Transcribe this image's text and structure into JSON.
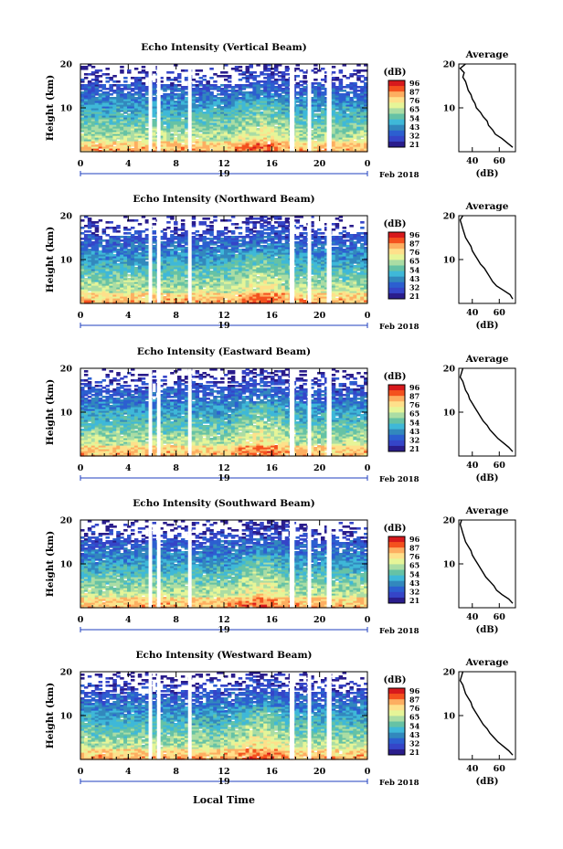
{
  "figure": {
    "xlabel": "Local Time",
    "date_label": "Feb 2018",
    "day_label": "19",
    "colorbar_unit": "(dB)",
    "colorbar_ticks": [
      "96",
      "87",
      "76",
      "65",
      "54",
      "43",
      "32",
      "21"
    ],
    "colorbar_colors": [
      "#d7191c",
      "#f4511e",
      "#fdae61",
      "#fee08b",
      "#e6f598",
      "#abdda4",
      "#66c2a5",
      "#3fb8d8",
      "#3288bd",
      "#2c5fd0",
      "#3545c8",
      "#2a1d8c"
    ],
    "background_color": "#ffffff"
  },
  "chart_data": [
    {
      "type": "heatmap",
      "title": "Echo Intensity (Vertical Beam)",
      "xlabel": "",
      "ylabel": "Height (km)",
      "xlim": [
        0,
        24
      ],
      "ylim": [
        0,
        20
      ],
      "xticks": [
        "0",
        "4",
        "8",
        "12",
        "16",
        "20",
        "0"
      ],
      "yticks": [
        "20",
        "10"
      ],
      "colorbar_label": "(dB)",
      "data_gaps_hours": [
        [
          5.7,
          6.0
        ],
        [
          6.4,
          6.7
        ],
        [
          9.0,
          9.3
        ],
        [
          17.5,
          17.9
        ],
        [
          19.0,
          19.3
        ],
        [
          20.6,
          21.0
        ]
      ],
      "profile": {
        "title": "Average",
        "xlabel": "(dB)",
        "xticks": [
          "40",
          "60"
        ],
        "yticks": [
          "20",
          "10"
        ],
        "xlim": [
          30,
          72
        ],
        "ylim": [
          0,
          20
        ],
        "height_km": [
          1,
          2,
          3,
          4,
          5,
          6,
          7,
          8,
          9,
          10,
          11,
          12,
          13,
          14,
          15,
          16,
          17,
          18,
          19,
          20
        ],
        "db": [
          70,
          66,
          62,
          57,
          55,
          52,
          51,
          48,
          46,
          43,
          42,
          40,
          39,
          37,
          36,
          35,
          33,
          34,
          31,
          35
        ]
      }
    },
    {
      "type": "heatmap",
      "title": "Echo Intensity (Northward Beam)",
      "xlabel": "",
      "ylabel": "Height (km)",
      "xlim": [
        0,
        24
      ],
      "ylim": [
        0,
        20
      ],
      "xticks": [
        "0",
        "4",
        "8",
        "12",
        "16",
        "20",
        "0"
      ],
      "yticks": [
        "20",
        "10"
      ],
      "colorbar_label": "(dB)",
      "data_gaps_hours": [
        [
          5.7,
          6.0
        ],
        [
          6.4,
          6.7
        ],
        [
          9.0,
          9.3
        ],
        [
          17.5,
          17.9
        ],
        [
          19.0,
          19.3
        ],
        [
          20.6,
          21.0
        ]
      ],
      "profile": {
        "title": "Average",
        "xlabel": "(dB)",
        "xticks": [
          "40",
          "60"
        ],
        "yticks": [
          "20",
          "10"
        ],
        "xlim": [
          30,
          72
        ],
        "ylim": [
          0,
          20
        ],
        "height_km": [
          1,
          2,
          3,
          4,
          5,
          6,
          7,
          8,
          9,
          10,
          11,
          12,
          13,
          14,
          15,
          16,
          17,
          18,
          19,
          20
        ],
        "db": [
          70,
          68,
          63,
          58,
          55,
          53,
          51,
          49,
          46,
          44,
          42,
          40,
          39,
          37,
          35,
          34,
          33,
          32,
          31,
          33
        ]
      }
    },
    {
      "type": "heatmap",
      "title": "Echo Intensity (Eastward Beam)",
      "xlabel": "",
      "ylabel": "Height (km)",
      "xlim": [
        0,
        24
      ],
      "ylim": [
        0,
        20
      ],
      "xticks": [
        "0",
        "4",
        "8",
        "12",
        "16",
        "20",
        "0"
      ],
      "yticks": [
        "20",
        "10"
      ],
      "colorbar_label": "(dB)",
      "data_gaps_hours": [
        [
          5.7,
          6.0
        ],
        [
          6.4,
          6.7
        ],
        [
          9.0,
          9.3
        ],
        [
          17.5,
          17.9
        ],
        [
          19.0,
          19.3
        ],
        [
          20.6,
          21.0
        ]
      ],
      "profile": {
        "title": "Average",
        "xlabel": "(dB)",
        "xticks": [
          "40",
          "60"
        ],
        "yticks": [
          "20",
          "10"
        ],
        "xlim": [
          30,
          72
        ],
        "ylim": [
          0,
          20
        ],
        "height_km": [
          1,
          2,
          3,
          4,
          5,
          6,
          7,
          8,
          9,
          10,
          11,
          12,
          13,
          14,
          15,
          16,
          17,
          18,
          19,
          20
        ],
        "db": [
          70,
          67,
          63,
          59,
          56,
          53,
          51,
          48,
          46,
          44,
          42,
          40,
          38,
          37,
          35,
          34,
          33,
          31,
          32,
          33
        ]
      }
    },
    {
      "type": "heatmap",
      "title": "Echo Intensity (Southward Beam)",
      "xlabel": "",
      "ylabel": "Height (km)",
      "xlim": [
        0,
        24
      ],
      "ylim": [
        0,
        20
      ],
      "xticks": [
        "0",
        "4",
        "8",
        "12",
        "16",
        "20",
        "0"
      ],
      "yticks": [
        "20",
        "10"
      ],
      "colorbar_label": "(dB)",
      "data_gaps_hours": [
        [
          5.7,
          6.0
        ],
        [
          6.4,
          6.7
        ],
        [
          9.0,
          9.3
        ],
        [
          17.5,
          17.9
        ],
        [
          19.0,
          19.3
        ],
        [
          20.6,
          21.0
        ]
      ],
      "profile": {
        "title": "Average",
        "xlabel": "(dB)",
        "xticks": [
          "40",
          "60"
        ],
        "yticks": [
          "20",
          "10"
        ],
        "xlim": [
          30,
          72
        ],
        "ylim": [
          0,
          20
        ],
        "height_km": [
          1,
          2,
          3,
          4,
          5,
          6,
          7,
          8,
          9,
          10,
          11,
          12,
          13,
          14,
          15,
          16,
          17,
          18,
          19,
          20
        ],
        "db": [
          70,
          67,
          62,
          58,
          56,
          53,
          50,
          48,
          46,
          44,
          42,
          40,
          39,
          37,
          35,
          34,
          33,
          32,
          31,
          32
        ]
      }
    },
    {
      "type": "heatmap",
      "title": "Echo Intensity (Westward Beam)",
      "xlabel": "Local Time",
      "ylabel": "Height (km)",
      "xlim": [
        0,
        24
      ],
      "ylim": [
        0,
        20
      ],
      "xticks": [
        "0",
        "4",
        "8",
        "12",
        "16",
        "20",
        "0"
      ],
      "yticks": [
        "20",
        "10"
      ],
      "colorbar_label": "(dB)",
      "data_gaps_hours": [
        [
          5.7,
          6.0
        ],
        [
          6.4,
          6.7
        ],
        [
          9.0,
          9.3
        ],
        [
          17.5,
          17.9
        ],
        [
          19.0,
          19.3
        ],
        [
          20.6,
          21.0
        ]
      ],
      "profile": {
        "title": "Average",
        "xlabel": "(dB)",
        "xticks": [
          "40",
          "60"
        ],
        "yticks": [
          "20",
          "10"
        ],
        "xlim": [
          30,
          72
        ],
        "ylim": [
          0,
          20
        ],
        "height_km": [
          1,
          2,
          3,
          4,
          5,
          6,
          7,
          8,
          9,
          10,
          11,
          12,
          13,
          14,
          15,
          16,
          17,
          18,
          19,
          20
        ],
        "db": [
          70,
          67,
          63,
          59,
          56,
          53,
          51,
          48,
          46,
          44,
          42,
          40,
          39,
          37,
          35,
          34,
          33,
          31,
          32,
          33
        ]
      }
    }
  ]
}
